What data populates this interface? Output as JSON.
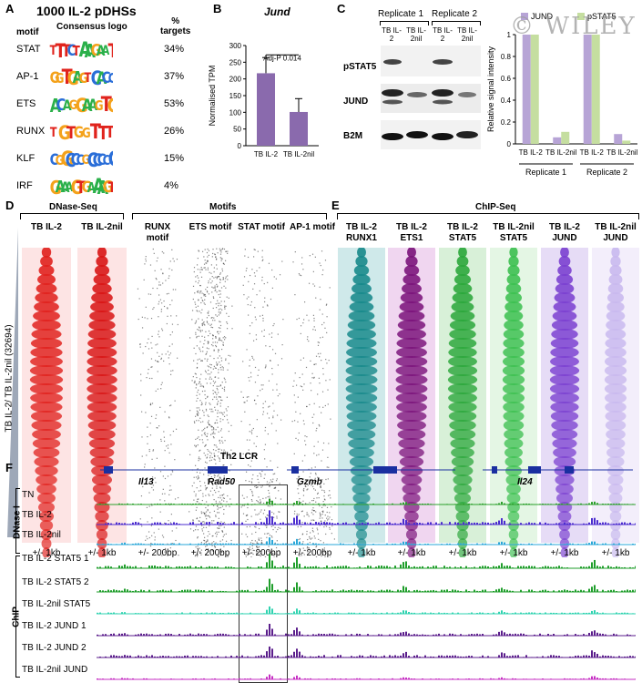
{
  "panels": {
    "A": "A",
    "B": "B",
    "C": "C",
    "D": "D",
    "E": "E",
    "F": "F"
  },
  "panelA": {
    "title": "1000  IL-2 pDHSs",
    "col_motif": "motif",
    "col_logo": "Consensus logo",
    "col_pct": "%\ntargets",
    "rows": [
      {
        "name": "STAT",
        "pct": "34%",
        "logo": "TTTCTAAGAAT"
      },
      {
        "name": "AP-1",
        "pct": "37%",
        "logo": "GGTGAGTCACC"
      },
      {
        "name": "ETS",
        "pct": "53%",
        "logo": "ACAGGAAGTG"
      },
      {
        "name": "RUNX",
        "pct": "26%",
        "logo": "TGTGGTTT"
      },
      {
        "name": "KLF",
        "pct": "15%",
        "logo": "CGGCCCGCCCCC"
      },
      {
        "name": "IRF",
        "pct": "4%",
        "logo": "GAAAGTGAAAGT"
      }
    ]
  },
  "panelB": {
    "title": "Jund",
    "ylabel": "Normalised TPM",
    "annotation": "Adj-P 0.014",
    "xlabels": [
      "TB IL-2",
      "TB IL-2nil"
    ]
  },
  "panelC": {
    "rep1": "Replicate 1",
    "rep2": "Replicate 2",
    "lane_labels": [
      "TB IL-2",
      "TB IL-2nil",
      "TB IL-2",
      "TB IL-2nil"
    ],
    "blot_labels": [
      "pSTAT5",
      "JUND",
      "B2M"
    ],
    "ylabel": "Relative signal intensity",
    "legend": [
      "JUND",
      "pSTAT5"
    ],
    "watermark": "© WILEY"
  },
  "panelD": {
    "group1": "DNase-Seq",
    "group2": "Motifs",
    "cols": [
      "TB IL-2",
      "TB IL-2nil",
      "RUNX motif",
      "ETS motif",
      "STAT motif",
      "AP-1 motif"
    ],
    "ranges": [
      "+/- 1kb",
      "+/- 1kb",
      "+/- 200bp",
      "+/- 200bp",
      "+/- 200bp",
      "+/- 200bp"
    ],
    "ylabel": "TB IL-2/ TB IL-2nil (32694)"
  },
  "panelE": {
    "group": "ChIP-Seq",
    "cols": [
      "TB IL-2 RUNX1",
      "TB IL-2 ETS1",
      "TB IL-2 STAT5",
      "TB IL-2nil STAT5",
      "TB IL-2 JUND",
      "TB IL-2nil JUND"
    ],
    "ranges": [
      "+/- 1kb",
      "+/- 1kb",
      "+/- 1kb",
      "+/- 1kb",
      "+/- 1kb",
      "+/- 1kb"
    ]
  },
  "panelF": {
    "locus": "Th2 LCR",
    "genes": [
      "Il13",
      "Rad50",
      "Gzmb",
      "Il24"
    ],
    "group_dnase": "DNase I",
    "group_chip": "ChIP",
    "tracks": [
      "TN",
      "TB IL-2",
      "TB IL-2nil",
      "TB IL-2 STAT5 1",
      "TB IL-2 STAT5 2",
      "TB IL-2nil STAT5",
      "TB IL-2 JUND 1",
      "TB IL-2 JUND 2",
      "TB IL-2nil JUND"
    ],
    "track_colors": [
      "#2ca02c",
      "#4b2ccf",
      "#2aa7d8",
      "#1f9e2b",
      "#1f9e2b",
      "#2fd3b0",
      "#5b1e8c",
      "#5b1e8c",
      "#c62fc3"
    ]
  },
  "chart_data": [
    {
      "type": "bar",
      "categories": [
        "TB IL-2",
        "TB IL-2nil"
      ],
      "values": [
        217,
        101
      ],
      "error": [
        47,
        40
      ],
      "title": "Jund",
      "ylabel": "Normalised TPM",
      "ylim": [
        0,
        300
      ],
      "yticks": [
        0,
        50,
        100,
        150,
        200,
        250,
        300
      ],
      "bar_color": "#8a6aad"
    },
    {
      "type": "bar",
      "categories": [
        "TB IL-2",
        "TB IL-2nil",
        "TB IL-2",
        "TB IL-2nil"
      ],
      "groups": [
        "Replicate 1",
        "Replicate 2"
      ],
      "series": [
        {
          "name": "JUND",
          "values": [
            1.0,
            0.06,
            1.0,
            0.09
          ],
          "color": "#b7a4d6"
        },
        {
          "name": "pSTAT5",
          "values": [
            1.0,
            0.11,
            1.0,
            0.03
          ],
          "color": "#c5dea0"
        }
      ],
      "ylabel": "Relative signal intensity",
      "ylim": [
        0,
        1
      ],
      "yticks": [
        0,
        0.2,
        0.4,
        0.6,
        0.8,
        1
      ],
      "legend": "top"
    }
  ]
}
